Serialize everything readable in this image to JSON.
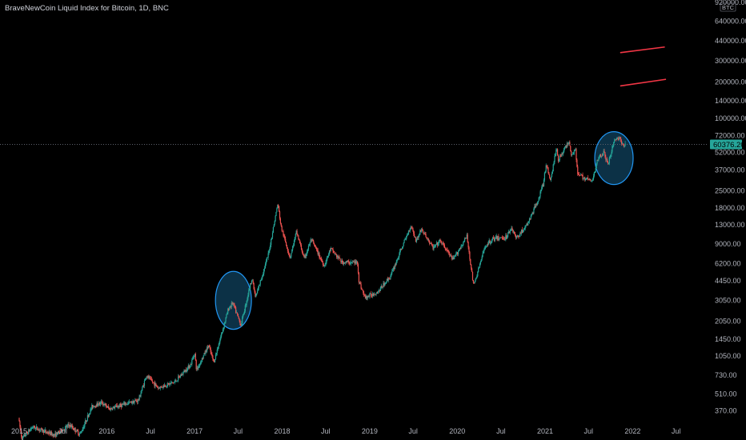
{
  "header": {
    "title": "BraveNewCoin Liquid Index for Bitcoin, 1D, BNC"
  },
  "scale": {
    "currency_badge": "BTC"
  },
  "colors": {
    "background": "#000000",
    "up": "#26a69a",
    "down": "#ef5350",
    "axis_text": "#b2b5be",
    "price_line": "#5d606b",
    "price_badge_bg": "#26a69a",
    "circle_fill": "#0e3a52",
    "circle_stroke": "#2196f3",
    "trend_line": "#f23645"
  },
  "chart_data": {
    "type": "candlestick",
    "symbol": "BraveNewCoin Liquid Index for Bitcoin",
    "interval": "1D",
    "exchange": "BNC",
    "y_scale": "log",
    "ylim": [
      310,
      1000000
    ],
    "xlim": [
      "2014-12-20",
      "2022-12-31"
    ],
    "y_ticks": [
      "920000.00",
      "640000.00",
      "440000.00",
      "300000.00",
      "200000.00",
      "140000.00",
      "100000.00",
      "72000.00",
      "52000.00",
      "37000.00",
      "25000.00",
      "18000.00",
      "13000.00",
      "9000.00",
      "6200.00",
      "4450.00",
      "3050.00",
      "2050.00",
      "1450.00",
      "1050.00",
      "730.00",
      "510.00",
      "370.00"
    ],
    "x_ticks": [
      {
        "label": "2015",
        "date": "2015-01-01"
      },
      {
        "label": "Jul",
        "date": "2015-07-01"
      },
      {
        "label": "2016",
        "date": "2016-01-01"
      },
      {
        "label": "Jul",
        "date": "2016-07-01"
      },
      {
        "label": "2017",
        "date": "2017-01-01"
      },
      {
        "label": "Jul",
        "date": "2017-07-01"
      },
      {
        "label": "2018",
        "date": "2018-01-01"
      },
      {
        "label": "Jul",
        "date": "2018-07-01"
      },
      {
        "label": "2019",
        "date": "2019-01-01"
      },
      {
        "label": "Jul",
        "date": "2019-07-01"
      },
      {
        "label": "2020",
        "date": "2020-01-01"
      },
      {
        "label": "Jul",
        "date": "2020-07-01"
      },
      {
        "label": "2021",
        "date": "2021-01-01"
      },
      {
        "label": "Jul",
        "date": "2021-07-01"
      },
      {
        "label": "2022",
        "date": "2022-01-01"
      },
      {
        "label": "Jul",
        "date": "2022-07-01"
      }
    ],
    "last_price": 60376.2,
    "last_price_label": "60376.20",
    "price_path": [
      [
        "2015-01-01",
        320
      ],
      [
        "2015-01-15",
        215
      ],
      [
        "2015-03-01",
        270
      ],
      [
        "2015-06-01",
        230
      ],
      [
        "2015-08-01",
        280
      ],
      [
        "2015-09-15",
        235
      ],
      [
        "2015-11-04",
        400
      ],
      [
        "2015-12-15",
        430
      ],
      [
        "2016-01-15",
        380
      ],
      [
        "2016-03-15",
        415
      ],
      [
        "2016-05-15",
        450
      ],
      [
        "2016-06-17",
        720
      ],
      [
        "2016-08-05",
        570
      ],
      [
        "2016-10-15",
        640
      ],
      [
        "2016-12-20",
        900
      ],
      [
        "2017-01-04",
        1130
      ],
      [
        "2017-01-12",
        800
      ],
      [
        "2017-03-03",
        1280
      ],
      [
        "2017-03-25",
        930
      ],
      [
        "2017-05-25",
        2600
      ],
      [
        "2017-06-12",
        2900
      ],
      [
        "2017-07-16",
        1900
      ],
      [
        "2017-08-31",
        4700
      ],
      [
        "2017-09-15",
        3200
      ],
      [
        "2017-11-08",
        7400
      ],
      [
        "2017-12-17",
        19500
      ],
      [
        "2017-12-30",
        12500
      ],
      [
        "2018-02-06",
        6900
      ],
      [
        "2018-03-05",
        11400
      ],
      [
        "2018-04-06",
        6700
      ],
      [
        "2018-05-05",
        9800
      ],
      [
        "2018-06-28",
        5900
      ],
      [
        "2018-07-25",
        8200
      ],
      [
        "2018-09-10",
        6300
      ],
      [
        "2018-11-14",
        6300
      ],
      [
        "2018-11-20",
        4400
      ],
      [
        "2018-12-15",
        3200
      ],
      [
        "2019-02-08",
        3600
      ],
      [
        "2019-04-02",
        4900
      ],
      [
        "2019-05-14",
        8000
      ],
      [
        "2019-06-26",
        12900
      ],
      [
        "2019-07-16",
        9500
      ],
      [
        "2019-08-07",
        11900
      ],
      [
        "2019-09-25",
        8300
      ],
      [
        "2019-10-26",
        9500
      ],
      [
        "2019-12-17",
        6600
      ],
      [
        "2020-02-13",
        10400
      ],
      [
        "2020-03-12",
        4000
      ],
      [
        "2020-04-30",
        8700
      ],
      [
        "2020-06-01",
        9900
      ],
      [
        "2020-07-26",
        10200
      ],
      [
        "2020-08-17",
        12300
      ],
      [
        "2020-09-05",
        10000
      ],
      [
        "2020-10-21",
        12900
      ],
      [
        "2020-11-30",
        19500
      ],
      [
        "2020-12-27",
        28000
      ],
      [
        "2021-01-08",
        41000
      ],
      [
        "2021-01-27",
        30500
      ],
      [
        "2021-02-21",
        57500
      ],
      [
        "2021-02-28",
        45000
      ],
      [
        "2021-04-14",
        64500
      ],
      [
        "2021-04-25",
        48000
      ],
      [
        "2021-05-10",
        58000
      ],
      [
        "2021-05-19",
        34000
      ],
      [
        "2021-06-22",
        31500
      ],
      [
        "2021-07-20",
        29800
      ],
      [
        "2021-08-14",
        47500
      ],
      [
        "2021-09-07",
        52000
      ],
      [
        "2021-09-22",
        40500
      ],
      [
        "2021-10-20",
        66000
      ],
      [
        "2021-11-10",
        68800
      ],
      [
        "2021-11-26",
        57000
      ],
      [
        "2021-12-02",
        60376.2
      ]
    ],
    "annotations": {
      "circles": [
        {
          "center": [
            "2017-06-12",
            3000
          ],
          "rx_days": 150,
          "ry_log_span": [
            1750,
            5300
          ]
        },
        {
          "center": [
            "2021-10-15",
            50000
          ],
          "rx_days": 160,
          "ry_log_span": [
            28000,
            77000
          ]
        }
      ],
      "trend_lines": [
        {
          "from": [
            "2021-11-10",
            350000
          ],
          "to": [
            "2022-05-15",
            390000
          ]
        },
        {
          "from": [
            "2021-11-10",
            185000
          ],
          "to": [
            "2022-05-20",
            210000
          ]
        }
      ]
    }
  }
}
